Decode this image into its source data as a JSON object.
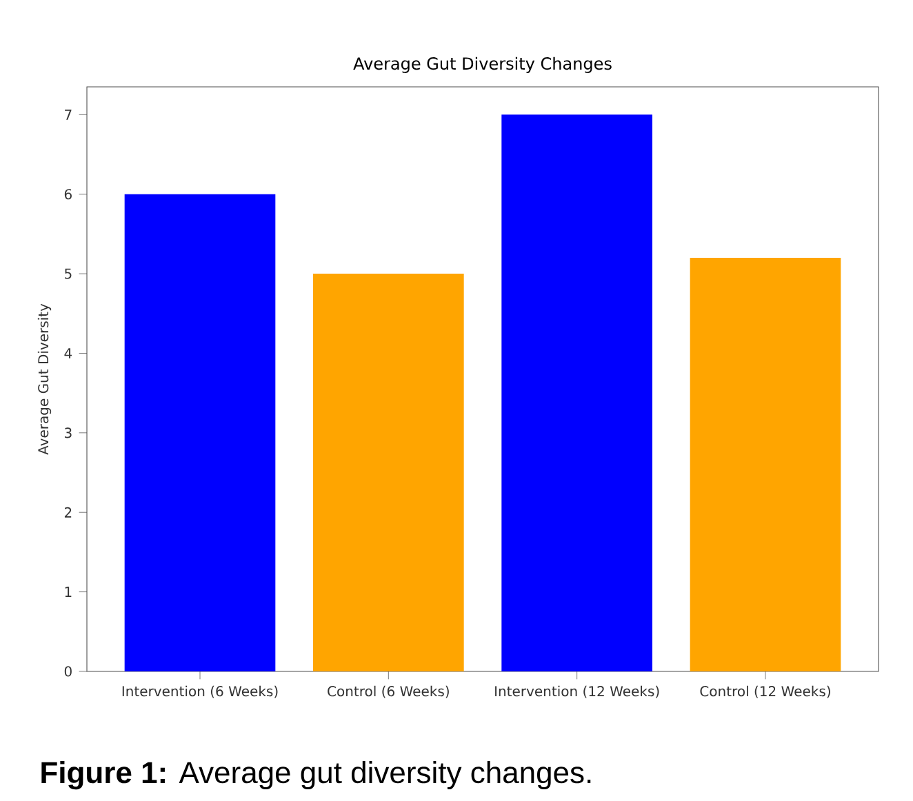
{
  "chart_data": {
    "type": "bar",
    "title": "Average Gut Diversity Changes",
    "ylabel": "Average Gut Diversity",
    "categories": [
      "Intervention (6 Weeks)",
      "Control (6 Weeks)",
      "Intervention (12 Weeks)",
      "Control (12 Weeks)"
    ],
    "values": [
      6,
      5,
      7,
      5.2
    ],
    "colors": [
      "#0000ff",
      "#ffa500",
      "#0000ff",
      "#ffa500"
    ],
    "ylim": [
      0,
      7.35
    ],
    "yticks": [
      0,
      1,
      2,
      3,
      4,
      5,
      6,
      7
    ],
    "annotations": [
      "**Figure 1:** Average gut diversity changes."
    ]
  }
}
